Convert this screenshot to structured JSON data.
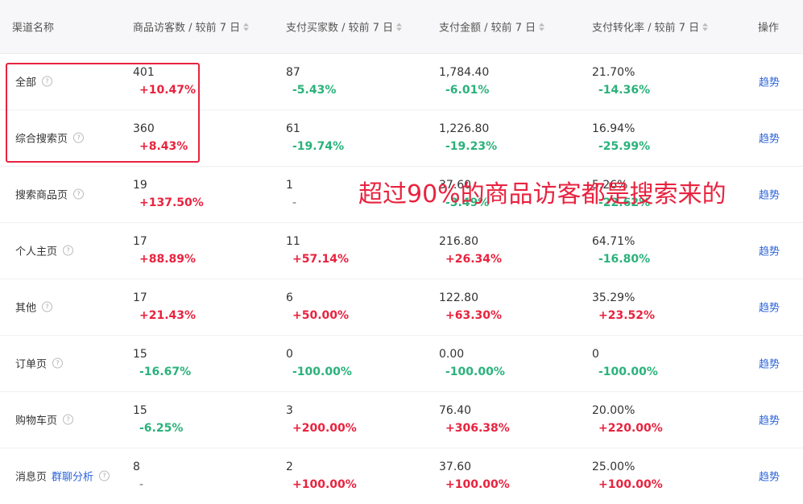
{
  "header": {
    "channel": "渠道名称",
    "visitors": "商品访客数 / 较前 7 日",
    "buyers": "支付买家数 / 较前 7 日",
    "amount": "支付金额 / 较前 7 日",
    "conversion": "支付转化率 / 较前 7 日",
    "action": "操作"
  },
  "rows": [
    {
      "name": "全部",
      "link": "",
      "visitors": "401",
      "visitors_chg": "+10.47%",
      "buyers": "87",
      "buyers_chg": "-5.43%",
      "amount": "1,784.40",
      "amount_chg": "-6.01%",
      "conv": "21.70%",
      "conv_chg": "-14.36%",
      "action": "趋势"
    },
    {
      "name": "综合搜索页",
      "link": "",
      "visitors": "360",
      "visitors_chg": "+8.43%",
      "buyers": "61",
      "buyers_chg": "-19.74%",
      "amount": "1,226.80",
      "amount_chg": "-19.23%",
      "conv": "16.94%",
      "conv_chg": "-25.99%",
      "action": "趋势"
    },
    {
      "name": "搜索商品页",
      "link": "",
      "visitors": "19",
      "visitors_chg": "+137.50%",
      "buyers": "1",
      "buyers_chg": "-",
      "amount": "37.60",
      "amount_chg": "-3.49%",
      "conv": "5.26%",
      "conv_chg": "-22.62%",
      "action": "趋势"
    },
    {
      "name": "个人主页",
      "link": "",
      "visitors": "17",
      "visitors_chg": "+88.89%",
      "buyers": "11",
      "buyers_chg": "+57.14%",
      "amount": "216.80",
      "amount_chg": "+26.34%",
      "conv": "64.71%",
      "conv_chg": "-16.80%",
      "action": "趋势"
    },
    {
      "name": "其他",
      "link": "",
      "visitors": "17",
      "visitors_chg": "+21.43%",
      "buyers": "6",
      "buyers_chg": "+50.00%",
      "amount": "122.80",
      "amount_chg": "+63.30%",
      "conv": "35.29%",
      "conv_chg": "+23.52%",
      "action": "趋势"
    },
    {
      "name": "订单页",
      "link": "",
      "visitors": "15",
      "visitors_chg": "-16.67%",
      "buyers": "0",
      "buyers_chg": "-100.00%",
      "amount": "0.00",
      "amount_chg": "-100.00%",
      "conv": "0",
      "conv_chg": "-100.00%",
      "action": "趋势"
    },
    {
      "name": "购物车页",
      "link": "",
      "visitors": "15",
      "visitors_chg": "-6.25%",
      "buyers": "3",
      "buyers_chg": "+200.00%",
      "amount": "76.40",
      "amount_chg": "+306.38%",
      "conv": "20.00%",
      "conv_chg": "+220.00%",
      "action": "趋势"
    },
    {
      "name": "消息页",
      "link": "群聊分析",
      "visitors": "8",
      "visitors_chg": "-",
      "buyers": "2",
      "buyers_chg": "+100.00%",
      "amount": "37.60",
      "amount_chg": "+100.00%",
      "conv": "25.00%",
      "conv_chg": "+100.00%",
      "action": "趋势"
    }
  ],
  "annotation": "超过90%的商品访客都是搜索来的",
  "colors": {
    "up": "#e8233f",
    "down": "#2ab27b",
    "link": "#2b63d9",
    "box": "#e8233f"
  },
  "icons": {
    "help": "question-circle-icon",
    "sort": "sort-caret-icon"
  }
}
